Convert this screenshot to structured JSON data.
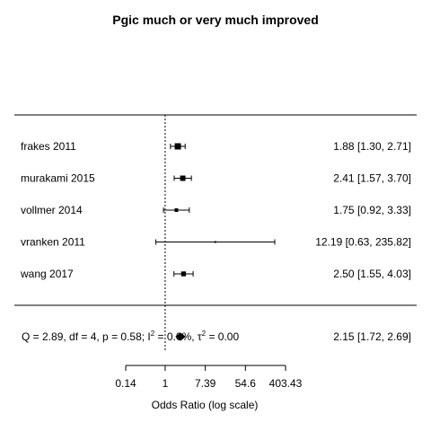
{
  "chart_data": {
    "type": "forest",
    "title": "Pgic much or very much improved",
    "xlabel": "Odds Ratio (log scale)",
    "x_scale": "log",
    "reference_line": 1,
    "xlim": [
      0.1,
      403.43
    ],
    "ticks": [
      {
        "value": 0.14,
        "label": "0.14"
      },
      {
        "value": 1,
        "label": "1"
      },
      {
        "value": 7.39,
        "label": "7.39"
      },
      {
        "value": 54.6,
        "label": "54.6"
      },
      {
        "value": 403.43,
        "label": "403.43"
      }
    ],
    "studies": [
      {
        "label": "frakes 2011",
        "estimate": 1.88,
        "lower": 1.3,
        "upper": 2.71,
        "ci_text": "1.88 [1.30,   2.71]"
      },
      {
        "label": "murakami 2015",
        "estimate": 2.41,
        "lower": 1.57,
        "upper": 3.7,
        "ci_text": "2.41 [1.57,   3.70]"
      },
      {
        "label": "vollmer 2014",
        "estimate": 1.75,
        "lower": 0.92,
        "upper": 3.33,
        "ci_text": "1.75 [0.92,   3.33]"
      },
      {
        "label": "vranken 2011",
        "estimate": 12.19,
        "lower": 0.63,
        "upper": 235.82,
        "ci_text": "12.19 [0.63, 235.82]"
      },
      {
        "label": "wang 2017",
        "estimate": 2.5,
        "lower": 1.55,
        "upper": 4.03,
        "ci_text": "2.50 [1.55,   4.03]"
      }
    ],
    "summary": {
      "stats_prefix": "Q = 2.89, df = 4, p = 0.58; I",
      "i2_sup": "2",
      "i2_value": " = 0.0%, τ",
      "tau2_sup": "2",
      "tau2_value": " = 0.00",
      "estimate": 2.15,
      "lower": 1.72,
      "upper": 2.69,
      "ci_text": "2.15 [1.72,   2.69]"
    }
  }
}
